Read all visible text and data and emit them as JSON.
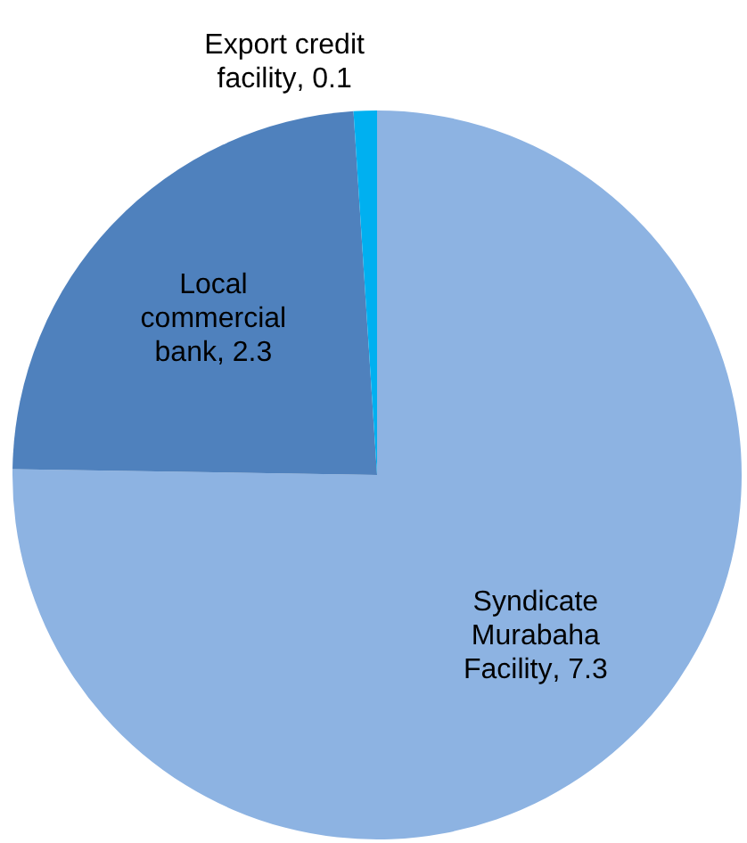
{
  "chart_data": {
    "type": "pie",
    "categories": [
      "Syndicate Murabaha Facility",
      "Local commercial bank",
      "Export credit facility"
    ],
    "values": [
      7.3,
      2.3,
      0.1
    ],
    "value_labels": [
      ", 7.3",
      ", 2.3",
      ", 0.1"
    ],
    "colors": [
      "#8db3e2",
      "#4f81bd",
      "#00b0f0"
    ],
    "legend": false
  }
}
